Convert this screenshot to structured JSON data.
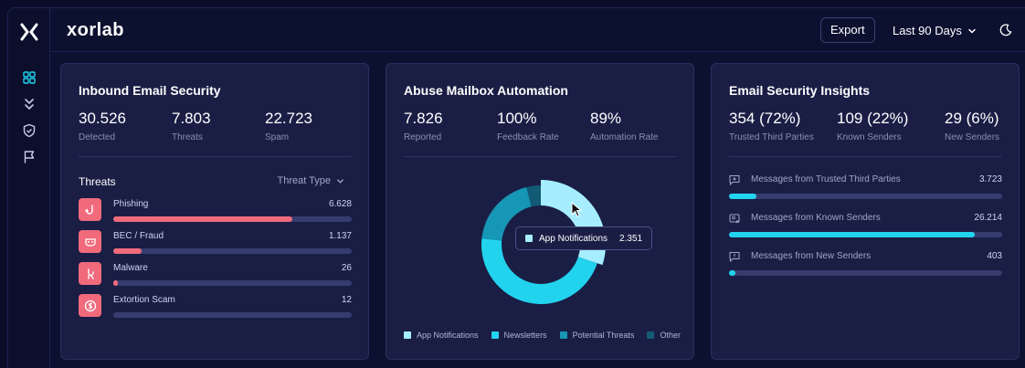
{
  "app": {
    "brand": "xorlab"
  },
  "header": {
    "export_label": "Export",
    "date_range": "Last 90 Days"
  },
  "icons": {
    "sidebar": [
      "x-logo-icon",
      "dashboard-grid-icon",
      "chevrons-down-icon",
      "shield-icon",
      "flag-icon"
    ],
    "header": [
      "chevron-down-icon",
      "moon-icon"
    ]
  },
  "colors": {
    "accent_cyan": "#22d3ee",
    "threat_red": "#f06a7c",
    "app_notifications": "#a6eeff",
    "newsletters": "#22d3ee",
    "potential_threats": "#1597b5",
    "other": "#135a75"
  },
  "inbound": {
    "title": "Inbound Email Security",
    "stats": [
      {
        "value": "30.526",
        "label": "Detected"
      },
      {
        "value": "7.803",
        "label": "Threats"
      },
      {
        "value": "22.723",
        "label": "Spam"
      }
    ],
    "threats_label": "Threats",
    "threat_type_label": "Threat Type",
    "threats": [
      {
        "name": "Phishing",
        "value": "6.628",
        "ratio": 0.75,
        "icon": "hook-icon"
      },
      {
        "name": "BEC / Fraud",
        "value": "1.137",
        "ratio": 0.12,
        "icon": "mask-icon"
      },
      {
        "name": "Malware",
        "value": "26",
        "ratio": 0.02,
        "icon": "bug-icon"
      },
      {
        "name": "Extortion Scam",
        "value": "12",
        "ratio": 0.0,
        "icon": "dollar-icon"
      }
    ]
  },
  "abuse": {
    "title": "Abuse Mailbox Automation",
    "stats": [
      {
        "value": "7.826",
        "label": "Reported"
      },
      {
        "value": "100%",
        "label": "Feedback Rate"
      },
      {
        "value": "89%",
        "label": "Automation Rate"
      }
    ],
    "tooltip": {
      "label": "App Notifications",
      "value": "2.351"
    },
    "legend": [
      "App Notifications",
      "Newsletters",
      "Potential Threats",
      "Other"
    ]
  },
  "chart_data": {
    "type": "pie",
    "categories": [
      "App Notifications",
      "Newsletters",
      "Potential Threats",
      "Other"
    ],
    "values": [
      2351,
      3650,
      1520,
      305
    ],
    "highlighted": "App Notifications",
    "legend_position": "bottom"
  },
  "insights": {
    "title": "Email Security Insights",
    "stats": [
      {
        "value": "354 (72%)",
        "label": "Trusted Third Parties"
      },
      {
        "value": "109 (22%)",
        "label": "Known Senders"
      },
      {
        "value": "29 (6%)",
        "label": "New Senders"
      }
    ],
    "rows": [
      {
        "name": "Messages from Trusted Third Parties",
        "value": "3.723",
        "ratio": 0.1,
        "icon": "message-plus-icon"
      },
      {
        "name": "Messages from Known Senders",
        "value": "26.214",
        "ratio": 0.9,
        "icon": "contact-card-icon"
      },
      {
        "name": "Messages from New Senders",
        "value": "403",
        "ratio": 0.025,
        "icon": "message-alert-icon"
      }
    ]
  }
}
